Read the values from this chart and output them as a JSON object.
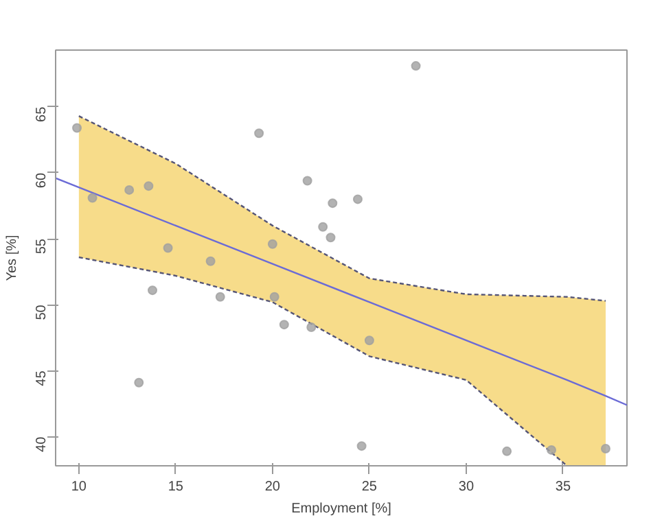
{
  "chart_data": {
    "type": "scatter",
    "xlabel": "Employment [%]",
    "ylabel": "Yes [%]",
    "xlim": [
      8.8,
      38.3
    ],
    "ylim": [
      37.8,
      69.3
    ],
    "xticks": [
      10,
      15,
      20,
      25,
      30,
      35
    ],
    "yticks": [
      40,
      45,
      50,
      55,
      60,
      65
    ],
    "grid": false,
    "marker": "circle",
    "series": [
      {
        "color": "#a0a0a0",
        "x": [
          9.9,
          10.7,
          12.6,
          13.6,
          13.1,
          13.8,
          14.6,
          16.8,
          17.3,
          19.3,
          20.0,
          20.1,
          20.6,
          22.0,
          21.8,
          22.6,
          23.0,
          23.1,
          24.4,
          27.4,
          25.0,
          24.6,
          32.1,
          34.4,
          37.2
        ],
        "values": [
          63.4,
          58.1,
          58.7,
          59.0,
          44.1,
          51.1,
          54.3,
          53.3,
          50.6,
          63.0,
          54.6,
          50.6,
          48.5,
          48.3,
          59.4,
          55.9,
          55.1,
          57.7,
          58.0,
          68.1,
          47.3,
          39.3,
          38.9,
          39.0,
          39.1
        ]
      },
      {
        "type": "line",
        "color": "#6b6bd6",
        "colors": [
          "#f7dc8a",
          "#f7dc8a",
          "#f7dc8a",
          "#f7dc8a",
          "#f7dc8a",
          "#f7dc8a",
          "#f7dc8a",
          "#f7dc8a",
          "#f7dc8a"
        ],
        "marker": "none",
        "x": [
          8.8,
          10,
          15,
          20,
          25,
          30,
          35.2,
          37.2,
          38.3
        ],
        "values": [
          59.6,
          58.9,
          56.0,
          53.1,
          50.2,
          47.3,
          44.3,
          43.1,
          42.4
        ],
        "lower": [
          null,
          53.6,
          52.2,
          50.2,
          46.1,
          44.3,
          37.8,
          37.8,
          null
        ],
        "upper": [
          null,
          64.3,
          60.7,
          56.0,
          52.0,
          50.8,
          50.6,
          50.3,
          null
        ]
      },
      {
        "type": "line",
        "color": "#555577",
        "line_style": "dashed",
        "marker": "none",
        "x": [
          10,
          15,
          20,
          25,
          30,
          35.2,
          37.2
        ],
        "values": [
          64.3,
          60.7,
          56.0,
          52.0,
          50.8,
          50.6,
          50.3
        ]
      },
      {
        "type": "line",
        "color": "#555577",
        "line_style": "dashed",
        "marker": "none",
        "x": [
          10,
          15,
          20,
          25,
          30,
          35.2
        ],
        "values": [
          53.6,
          52.2,
          50.2,
          46.1,
          44.3,
          37.8
        ]
      }
    ]
  }
}
